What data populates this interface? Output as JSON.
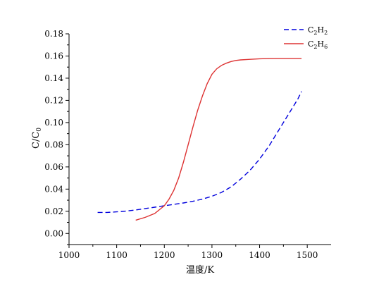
{
  "chart_data": {
    "type": "line",
    "xlabel": "温度/K",
    "ylabel": "C/C0",
    "xlim": [
      1000,
      1550
    ],
    "ylim": [
      -0.01,
      0.18
    ],
    "x_ticks": [
      1000,
      1100,
      1200,
      1300,
      1400,
      1500
    ],
    "y_ticks": [
      0.0,
      0.02,
      0.04,
      0.06,
      0.08,
      0.1,
      0.12,
      0.14,
      0.16,
      0.18
    ],
    "x_tick_labels": [
      "1000",
      "1100",
      "1200",
      "1300",
      "1400",
      "1500"
    ],
    "y_tick_labels": [
      "0.00",
      "0.02",
      "0.04",
      "0.06",
      "0.08",
      "0.10",
      "0.12",
      "0.14",
      "0.16",
      "0.18"
    ],
    "grid": false,
    "legend_position": "top-right",
    "series": [
      {
        "name": "C2H2",
        "name_parts": {
          "base1": "C",
          "sub1": "2",
          "base2": "H",
          "sub2": "2"
        },
        "color": "#0000dd",
        "style": "dashed",
        "x": [
          1060,
          1080,
          1100,
          1120,
          1140,
          1160,
          1180,
          1200,
          1220,
          1240,
          1260,
          1280,
          1300,
          1320,
          1340,
          1360,
          1380,
          1400,
          1420,
          1440,
          1460,
          1480,
          1488
        ],
        "y": [
          0.019,
          0.019,
          0.0195,
          0.0202,
          0.0212,
          0.0225,
          0.0237,
          0.025,
          0.0262,
          0.0275,
          0.029,
          0.031,
          0.0335,
          0.037,
          0.042,
          0.049,
          0.057,
          0.067,
          0.079,
          0.093,
          0.107,
          0.121,
          0.128
        ]
      },
      {
        "name": "C2H6",
        "name_parts": {
          "base1": "C",
          "sub1": "2",
          "base2": "H",
          "sub2": "6"
        },
        "color": "#dd3333",
        "style": "solid",
        "x": [
          1140,
          1160,
          1180,
          1200,
          1210,
          1220,
          1230,
          1240,
          1250,
          1260,
          1270,
          1280,
          1290,
          1300,
          1310,
          1320,
          1330,
          1340,
          1350,
          1360,
          1380,
          1400,
          1420,
          1440,
          1460,
          1480,
          1488
        ],
        "y": [
          0.012,
          0.0145,
          0.018,
          0.025,
          0.031,
          0.039,
          0.05,
          0.064,
          0.08,
          0.096,
          0.111,
          0.124,
          0.135,
          0.1435,
          0.1485,
          0.1515,
          0.1535,
          0.155,
          0.156,
          0.1565,
          0.157,
          0.1575,
          0.1577,
          0.1578,
          0.1578,
          0.1578,
          0.1578
        ]
      }
    ]
  }
}
